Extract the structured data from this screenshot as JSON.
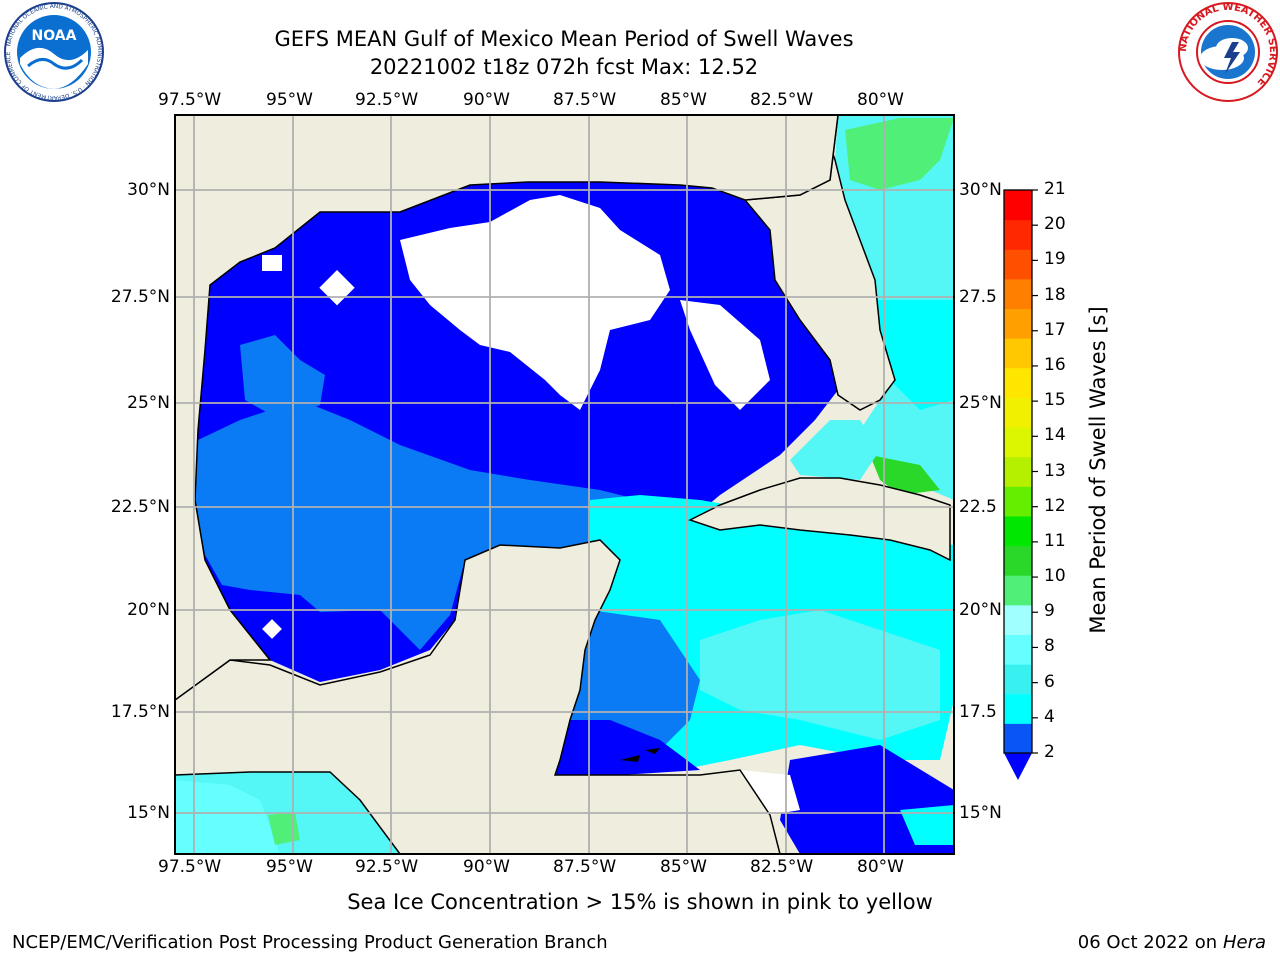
{
  "header": {
    "title_line1": "GEFS MEAN Gulf of Mexico Mean Period of Swell Waves",
    "title_line2": "20221002 t18z 072h fcst   Max: 12.52",
    "left_logo_text": "NOAA",
    "left_logo_ring": "NATIONAL OCEANIC AND ATMOSPHERIC ADMINISTRATION · U.S. DEPARTMENT OF COMMERCE",
    "right_logo_ring": "NATIONAL WEATHER SERVICE"
  },
  "map": {
    "lon_labels": [
      "97.5°W",
      "95°W",
      "92.5°W",
      "90°W",
      "87.5°W",
      "85°W",
      "82.5°W",
      "80°W"
    ],
    "lat_labels": [
      "30°N",
      "27.5°N",
      "25°N",
      "22.5°N",
      "20°N",
      "17.5°N",
      "15°N"
    ],
    "lat_labels_right": [
      "30°N",
      "27.5",
      "25°N",
      "22.5",
      "20°N",
      "17.5",
      "15°N"
    ]
  },
  "colorbar": {
    "label": "Mean Period of Swell Waves [s]",
    "ticks": [
      "2",
      "4",
      "6",
      "8",
      "9",
      "10",
      "11",
      "12",
      "13",
      "14",
      "15",
      "16",
      "17",
      "18",
      "19",
      "20",
      "21"
    ],
    "colors": [
      "#0a55f5",
      "#00ffff",
      "#38f0f0",
      "#66ffff",
      "#a0ffff",
      "#50f078",
      "#2ad82a",
      "#00e800",
      "#66ee00",
      "#b4f000",
      "#dcf500",
      "#f0f000",
      "#ffe600",
      "#ffc800",
      "#ffa000",
      "#ff8000",
      "#ff5000",
      "#ff2800",
      "#ff0000"
    ],
    "underflow_color": "#0000ff",
    "land_color": "#efedde",
    "ocean_dark": "#0000ff",
    "ocean_medium": "#0a7af5",
    "ocean_light": "#00ffff",
    "ocean_lighter": "#55f6f6"
  },
  "footer": {
    "note": "Sea Ice Concentration > 15% is shown in pink to yellow",
    "org": "NCEP/EMC/Verification Post Processing Product Generation Branch",
    "date": "06 Oct 2022 on ",
    "host": "Hera"
  }
}
